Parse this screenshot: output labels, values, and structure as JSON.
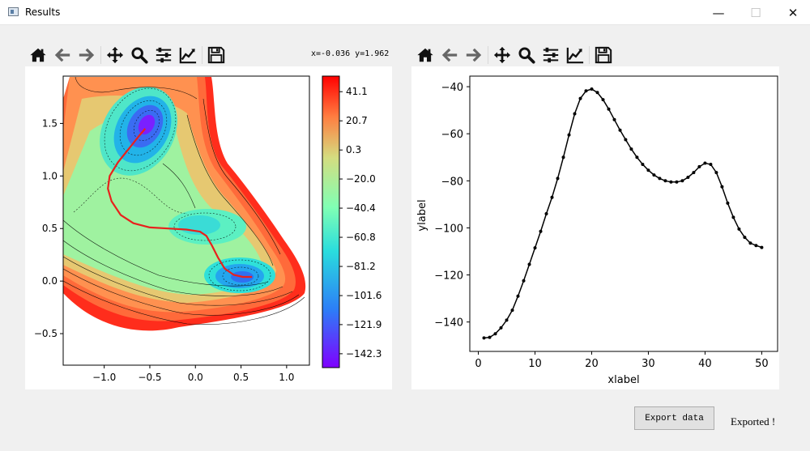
{
  "window": {
    "title": "Results",
    "controls": [
      "—",
      "☐",
      "✕"
    ]
  },
  "left_toolbar": {
    "coord_readout": "x=-0.036 y=1.962"
  },
  "toolbar_icons": [
    "home-icon",
    "back-arrow-icon",
    "forward-arrow-icon",
    "pan-icon",
    "zoom-icon",
    "configure-subplots-icon",
    "edit-axis-icon",
    "save-icon"
  ],
  "colors": {
    "path": "#e8211c",
    "line": "#000000",
    "background": "#f0f0f0"
  },
  "chart_data": [
    {
      "type": "contour",
      "x_ticks": [
        "−1.0",
        "−0.5",
        "0.0",
        "0.5",
        "1.0"
      ],
      "x_tick_values": [
        -1.0,
        -0.5,
        0.0,
        0.5,
        1.0
      ],
      "y_ticks": [
        "−0.5",
        "0.0",
        "0.5",
        "1.0",
        "1.5"
      ],
      "y_tick_values": [
        -0.5,
        0.0,
        0.5,
        1.0,
        1.5
      ],
      "xlim": [
        -1.45,
        1.25
      ],
      "ylim": [
        -0.8,
        1.95
      ],
      "colorbar": {
        "ticks": [
          "41.1",
          "20.7",
          "0.3",
          "−20.0",
          "−40.4",
          "−60.8",
          "−81.2",
          "−101.6",
          "−121.9",
          "−142.3"
        ],
        "tick_values": [
          41.1,
          20.7,
          0.3,
          -20.0,
          -40.4,
          -60.8,
          -81.2,
          -101.6,
          -121.9,
          -142.3
        ],
        "range": [
          -152,
          52
        ]
      },
      "path": {
        "x": [
          -0.55,
          -0.62,
          -0.72,
          -0.85,
          -0.94,
          -0.96,
          -0.92,
          -0.82,
          -0.68,
          -0.5,
          -0.3,
          -0.1,
          0.05,
          0.12,
          0.18,
          0.25,
          0.32,
          0.42,
          0.52,
          0.62
        ],
        "y": [
          1.45,
          1.38,
          1.27,
          1.13,
          1.0,
          0.88,
          0.76,
          0.63,
          0.55,
          0.51,
          0.5,
          0.49,
          0.47,
          0.43,
          0.34,
          0.22,
          0.12,
          0.06,
          0.04,
          0.04
        ]
      }
    },
    {
      "type": "line",
      "xlabel": "xlabel",
      "ylabel": "ylabel",
      "x_ticks": [
        0,
        10,
        20,
        30,
        40,
        50
      ],
      "y_ticks": [
        -140,
        -120,
        -100,
        -80,
        -60,
        -40
      ],
      "xlim": [
        -1.5,
        52.8
      ],
      "ylim": [
        -152.5,
        -35.5
      ],
      "x": [
        1,
        2,
        3,
        4,
        5,
        6,
        7,
        8,
        9,
        10,
        11,
        12,
        13,
        14,
        15,
        16,
        17,
        18,
        19,
        20,
        21,
        22,
        23,
        24,
        25,
        26,
        27,
        28,
        29,
        30,
        31,
        32,
        33,
        34,
        35,
        36,
        37,
        38,
        39,
        40,
        41,
        42,
        43,
        44,
        45,
        46,
        47,
        48,
        49,
        50
      ],
      "y": [
        -146.8,
        -146.5,
        -145.0,
        -142.5,
        -139.2,
        -135.0,
        -129.0,
        -122.5,
        -115.5,
        -108.5,
        -101.5,
        -94.0,
        -87.0,
        -79.0,
        -70.0,
        -60.5,
        -51.5,
        -45.0,
        -41.8,
        -41.0,
        -42.5,
        -45.5,
        -49.5,
        -54.0,
        -58.5,
        -62.5,
        -66.5,
        -70.0,
        -73.0,
        -75.5,
        -77.5,
        -79.0,
        -80.0,
        -80.5,
        -80.5,
        -80.0,
        -78.5,
        -76.5,
        -74.0,
        -72.5,
        -73.0,
        -76.5,
        -82.5,
        -89.5,
        -95.5,
        -100.5,
        -104.0,
        -106.5,
        -107.5,
        -108.3
      ]
    }
  ],
  "footer": {
    "export_button": "Export data",
    "status": "Exported !"
  }
}
